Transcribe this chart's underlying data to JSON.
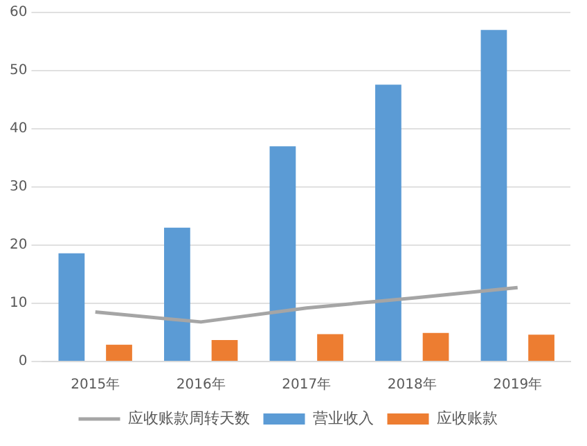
{
  "chart_data": {
    "type": "bar",
    "categories": [
      "2015年",
      "2016年",
      "2017年",
      "2018年",
      "2019年"
    ],
    "series": [
      {
        "name": "营业收入",
        "color": "#5b9bd5",
        "values": [
          18.6,
          23.0,
          37.0,
          47.6,
          57.0
        ]
      },
      {
        "name": "应收账款",
        "color": "#ed7d31",
        "values": [
          2.9,
          3.7,
          4.7,
          4.9,
          4.6
        ]
      },
      {
        "name": "应收账款周转天数",
        "color": "#a5a5a5",
        "type": "line",
        "values": [
          8.5,
          6.8,
          9.2,
          10.9,
          12.7
        ]
      }
    ],
    "ylim": [
      0,
      60
    ],
    "yticks": [
      0,
      10,
      20,
      30,
      40,
      50,
      60
    ],
    "grid": "y",
    "legend": "bottom",
    "marker": "none",
    "line_style": "solid"
  }
}
